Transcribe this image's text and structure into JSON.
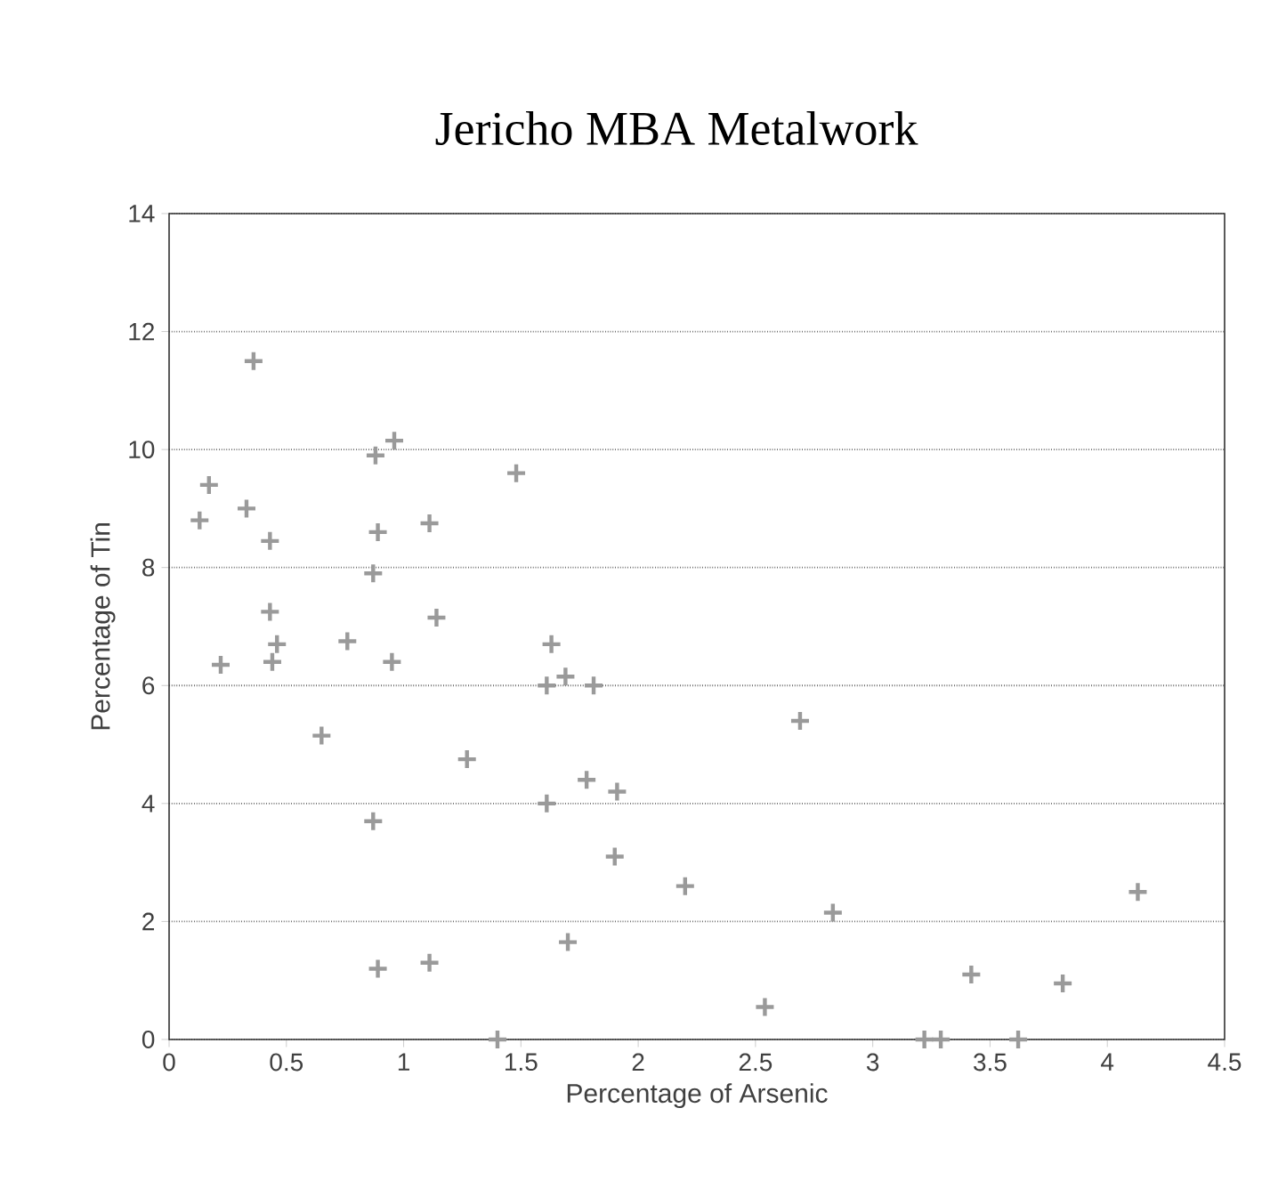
{
  "chart_data": {
    "type": "scatter",
    "title": "Jericho MBA Metalwork",
    "xlabel": "Percentage of Arsenic",
    "ylabel": "Percentage of Tin",
    "x": [
      0.13,
      0.17,
      0.22,
      0.36,
      0.33,
      0.43,
      0.43,
      0.46,
      0.44,
      0.65,
      0.76,
      0.88,
      0.96,
      0.89,
      0.87,
      0.95,
      0.87,
      0.89,
      1.11,
      1.14,
      1.11,
      1.27,
      1.4,
      1.48,
      1.63,
      1.61,
      1.69,
      1.81,
      1.61,
      1.78,
      1.91,
      1.9,
      1.7,
      2.2,
      2.69,
      2.83,
      2.54,
      3.42,
      3.81,
      4.13,
      3.22,
      3.29,
      3.62
    ],
    "values": [
      8.8,
      9.4,
      6.35,
      11.5,
      9.0,
      8.45,
      7.25,
      6.7,
      6.4,
      5.15,
      6.75,
      9.9,
      10.15,
      8.6,
      7.9,
      6.4,
      3.7,
      1.2,
      8.75,
      7.15,
      1.3,
      4.75,
      0,
      9.6,
      6.7,
      6.0,
      6.15,
      6.0,
      4.0,
      4.4,
      4.2,
      3.1,
      1.65,
      2.6,
      5.4,
      2.15,
      0.55,
      1.1,
      0.95,
      2.5,
      0,
      0,
      0
    ],
    "color": "#9a9a9a",
    "marker": "cross",
    "grid": "y",
    "xlim": [
      0,
      4.5
    ],
    "xticks": [
      0,
      0.5,
      1,
      1.5,
      2,
      2.5,
      3,
      3.5,
      4,
      4.5
    ],
    "ylim": [
      0,
      14
    ],
    "yticks": [
      0,
      2,
      4,
      6,
      8,
      10,
      12,
      14
    ]
  }
}
